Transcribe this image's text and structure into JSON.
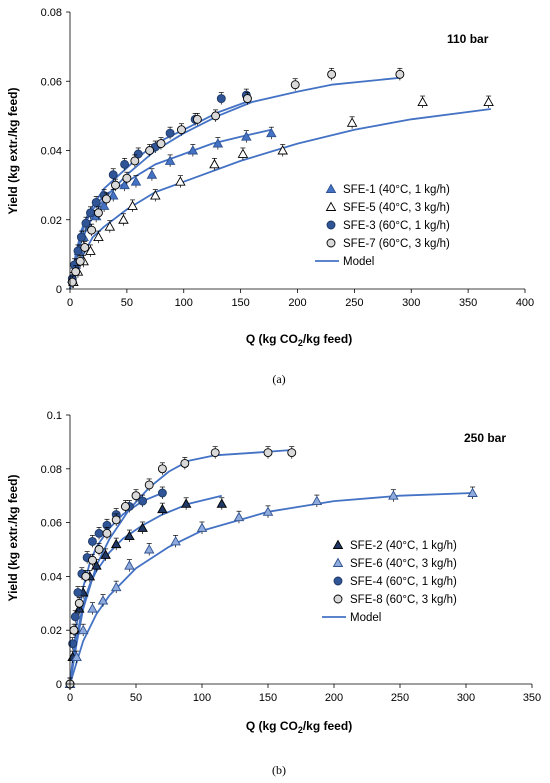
{
  "chart_data": [
    {
      "type": "scatter",
      "panel_label": "(a)",
      "annotation": "110 bar",
      "xlabel_main": "Q (kg CO",
      "xlabel_sub": "2",
      "xlabel_end": "/kg feed)",
      "ylabel": "Yield (kg extr./kg feed)",
      "xlim": [
        0,
        400
      ],
      "ylim": [
        0,
        0.08
      ],
      "x_ticks": [
        0,
        50,
        100,
        150,
        200,
        250,
        300,
        350,
        400
      ],
      "y_ticks": [
        0,
        0.02,
        0.04,
        0.06,
        0.08
      ],
      "x_tick_labels": [
        "0",
        "50",
        "100",
        "150",
        "200",
        "250",
        "300",
        "350",
        "400"
      ],
      "y_tick_labels": [
        "0",
        "0.02",
        "0.04",
        "0.06",
        "0.08"
      ],
      "grid": false,
      "legend_position": "center-right",
      "series": [
        {
          "name": "SFE-1 (40°C, 1 kg/h)",
          "marker": "triangle",
          "fill": "#4472c4",
          "stroke": "#2f528f",
          "x": [
            2,
            5,
            8,
            12,
            17,
            23,
            30,
            38,
            48,
            58,
            72,
            88,
            108,
            130,
            155,
            177
          ],
          "y": [
            0.003,
            0.007,
            0.011,
            0.015,
            0.018,
            0.021,
            0.024,
            0.027,
            0.03,
            0.031,
            0.033,
            0.037,
            0.04,
            0.042,
            0.044,
            0.045
          ]
        },
        {
          "name": "SFE-5 (40°C, 3 kg/h)",
          "marker": "triangle",
          "fill": "#ffffff",
          "stroke": "#000000",
          "x": [
            3,
            7,
            12,
            18,
            25,
            35,
            47,
            55,
            75,
            97,
            127,
            152,
            187,
            248,
            310,
            368
          ],
          "y": [
            0.002,
            0.005,
            0.008,
            0.011,
            0.015,
            0.018,
            0.02,
            0.024,
            0.027,
            0.031,
            0.036,
            0.039,
            0.04,
            0.048,
            0.054,
            0.054
          ]
        },
        {
          "name": "SFE-3 (60°C, 1 kg/h)",
          "marker": "circle",
          "fill": "#2f5597",
          "stroke": "#1f3864",
          "x": [
            2,
            4,
            7,
            10,
            14,
            18,
            23,
            30,
            38,
            48,
            60,
            75,
            88,
            110,
            133,
            155
          ],
          "y": [
            0.003,
            0.007,
            0.011,
            0.015,
            0.019,
            0.022,
            0.025,
            0.027,
            0.033,
            0.036,
            0.039,
            0.041,
            0.045,
            0.049,
            0.055,
            0.056
          ]
        },
        {
          "name": "SFE-7 (60°C, 3 kg/h)",
          "marker": "circle",
          "fill": "#d9d9d9",
          "stroke": "#000000",
          "x": [
            2,
            5,
            9,
            13,
            19,
            25,
            32,
            40,
            50,
            57,
            70,
            80,
            98,
            112,
            128,
            156,
            198,
            230,
            290
          ],
          "y": [
            0.002,
            0.005,
            0.008,
            0.012,
            0.017,
            0.022,
            0.026,
            0.03,
            0.032,
            0.037,
            0.04,
            0.042,
            0.046,
            0.049,
            0.05,
            0.055,
            0.059,
            0.062,
            0.062
          ]
        },
        {
          "name": "Model",
          "kind": "line",
          "stroke": "#4472c4",
          "curves": [
            {
              "x": [
                0,
                5,
                10,
                15,
                20,
                30,
                40,
                50,
                60,
                75,
                100,
                125,
                150,
                177
              ],
              "y": [
                0,
                0.009,
                0.016,
                0.02,
                0.023,
                0.027,
                0.029,
                0.031,
                0.033,
                0.036,
                0.039,
                0.042,
                0.044,
                0.046
              ]
            },
            {
              "x": [
                0,
                5,
                10,
                20,
                30,
                50,
                75,
                100,
                150,
                200,
                250,
                300,
                370
              ],
              "y": [
                0,
                0.005,
                0.009,
                0.015,
                0.018,
                0.023,
                0.028,
                0.031,
                0.037,
                0.042,
                0.046,
                0.049,
                0.052
              ]
            },
            {
              "x": [
                0,
                5,
                10,
                15,
                20,
                30,
                40,
                50,
                60,
                75,
                100,
                130,
                155
              ],
              "y": [
                0,
                0.01,
                0.017,
                0.021,
                0.024,
                0.029,
                0.032,
                0.035,
                0.038,
                0.042,
                0.046,
                0.051,
                0.054
              ]
            },
            {
              "x": [
                0,
                5,
                10,
                20,
                30,
                50,
                75,
                100,
                130,
                160,
                200,
                230,
                290
              ],
              "y": [
                0,
                0.008,
                0.014,
                0.021,
                0.026,
                0.033,
                0.04,
                0.045,
                0.05,
                0.054,
                0.057,
                0.059,
                0.061
              ]
            }
          ]
        }
      ]
    },
    {
      "type": "scatter",
      "panel_label": "(b)",
      "annotation": "250 bar",
      "xlabel_main": "Q (kg CO",
      "xlabel_sub": "2",
      "xlabel_end": "/kg feed)",
      "ylabel": "Yield (kg extr./kg feed)",
      "xlim": [
        0,
        350
      ],
      "ylim": [
        0,
        0.1
      ],
      "x_ticks": [
        0,
        50,
        100,
        150,
        200,
        250,
        300,
        350
      ],
      "y_ticks": [
        0,
        0.02,
        0.04,
        0.06,
        0.08,
        0.1
      ],
      "x_tick_labels": [
        "0",
        "50",
        "100",
        "150",
        "200",
        "250",
        "300",
        "350"
      ],
      "y_tick_labels": [
        "0",
        "0.02",
        "0.04",
        "0.06",
        "0.08",
        "0.1"
      ],
      "grid": false,
      "legend_position": "center-right",
      "series": [
        {
          "name": "SFE-2 (40°C, 1 kg/h)",
          "marker": "triangle",
          "fill": "#1f3864",
          "stroke": "#000000",
          "x": [
            0,
            2,
            4,
            7,
            10,
            15,
            20,
            27,
            35,
            45,
            55,
            70,
            88,
            115
          ],
          "y": [
            0,
            0.01,
            0.02,
            0.028,
            0.034,
            0.04,
            0.044,
            0.048,
            0.052,
            0.055,
            0.058,
            0.065,
            0.067,
            0.067
          ]
        },
        {
          "name": "SFE-6 (40°C, 3 kg/h)",
          "marker": "triangle",
          "fill": "#8faadc",
          "stroke": "#2f528f",
          "x": [
            0,
            5,
            10,
            17,
            25,
            35,
            45,
            60,
            80,
            100,
            128,
            150,
            187,
            245,
            305
          ],
          "y": [
            0,
            0.01,
            0.02,
            0.028,
            0.031,
            0.036,
            0.044,
            0.05,
            0.053,
            0.058,
            0.062,
            0.064,
            0.068,
            0.07,
            0.071
          ]
        },
        {
          "name": "SFE-4 (60°C, 1 kg/h)",
          "marker": "circle",
          "fill": "#2f5597",
          "stroke": "#1f3864",
          "x": [
            0,
            2,
            4,
            6,
            9,
            13,
            17,
            22,
            28,
            35,
            45,
            55,
            70
          ],
          "y": [
            0,
            0.015,
            0.025,
            0.034,
            0.041,
            0.047,
            0.053,
            0.056,
            0.059,
            0.063,
            0.066,
            0.068,
            0.071
          ]
        },
        {
          "name": "SFE-8 (60°C, 3 kg/h)",
          "marker": "circle",
          "fill": "#d9d9d9",
          "stroke": "#000000",
          "x": [
            0,
            3,
            7,
            12,
            17,
            22,
            28,
            35,
            42,
            50,
            60,
            70,
            87,
            110,
            150,
            168
          ],
          "y": [
            0,
            0.02,
            0.03,
            0.04,
            0.046,
            0.05,
            0.056,
            0.061,
            0.066,
            0.07,
            0.074,
            0.08,
            0.082,
            0.086,
            0.086,
            0.086
          ]
        },
        {
          "name": "Model",
          "kind": "line",
          "stroke": "#4472c4",
          "curves": [
            {
              "x": [
                0,
                5,
                10,
                15,
                20,
                30,
                40,
                55,
                70,
                90,
                115
              ],
              "y": [
                0,
                0.017,
                0.03,
                0.037,
                0.042,
                0.049,
                0.054,
                0.059,
                0.063,
                0.067,
                0.07
              ]
            },
            {
              "x": [
                0,
                5,
                10,
                20,
                30,
                50,
                75,
                100,
                150,
                200,
                250,
                305
              ],
              "y": [
                0,
                0.008,
                0.016,
                0.026,
                0.033,
                0.043,
                0.051,
                0.057,
                0.064,
                0.068,
                0.07,
                0.071
              ]
            },
            {
              "x": [
                0,
                5,
                10,
                15,
                20,
                30,
                40,
                55,
                70
              ],
              "y": [
                0,
                0.022,
                0.036,
                0.045,
                0.051,
                0.058,
                0.063,
                0.068,
                0.071
              ]
            },
            {
              "x": [
                0,
                5,
                10,
                20,
                30,
                45,
                60,
                75,
                90,
                110,
                140,
                168
              ],
              "y": [
                0,
                0.015,
                0.028,
                0.044,
                0.054,
                0.065,
                0.073,
                0.079,
                0.083,
                0.085,
                0.086,
                0.087
              ]
            }
          ]
        }
      ]
    }
  ]
}
